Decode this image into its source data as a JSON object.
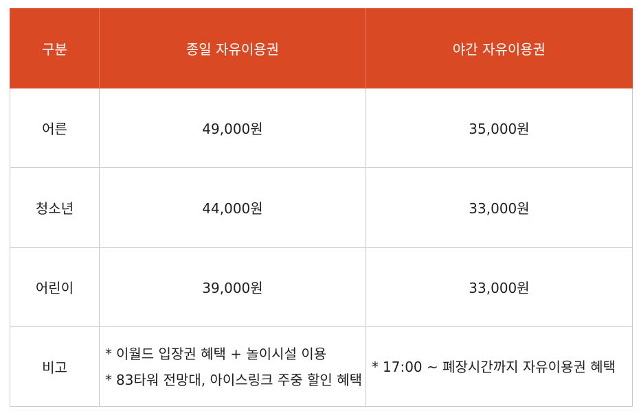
{
  "table": {
    "headers": [
      "구분",
      "종일 자유이용권",
      "야간 자유이용권"
    ],
    "rows": [
      {
        "category": "어른",
        "all_day": "49,000원",
        "night": "35,000원"
      },
      {
        "category": "청소년",
        "all_day": "44,000원",
        "night": "33,000원"
      },
      {
        "category": "어린이",
        "all_day": "39,000원",
        "night": "33,000원"
      }
    ],
    "notes": {
      "category": "비고",
      "all_day": [
        "이월드 입장권 혜택 + 놀이시설 이용",
        "83타워 전망대, 아이스링크 주중 할인 혜택"
      ],
      "night": [
        "17:00 ~ 폐장시간까지 자유이용권 혜택"
      ],
      "bullet": "*"
    }
  },
  "colors": {
    "header_bg": "#d94a24",
    "header_text": "#ffffff",
    "border": "#c9c9c9"
  }
}
